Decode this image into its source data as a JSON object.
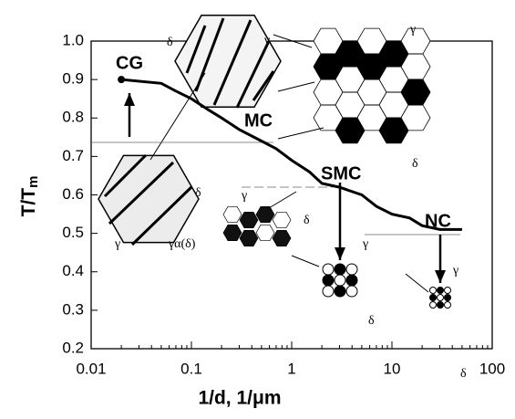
{
  "chart_data": {
    "type": "line",
    "x_label": "1/d, 1/μm",
    "y_label": [
      "T/T",
      "m"
    ],
    "x": [
      0.02,
      0.05,
      0.07,
      0.1,
      0.15,
      0.2,
      0.3,
      0.5,
      0.7,
      1,
      1.5,
      2,
      3,
      5,
      7,
      10,
      15,
      20,
      30,
      50
    ],
    "series": [
      {
        "color": "#000000",
        "values": [
          0.9,
          0.89,
          0.87,
          0.85,
          0.82,
          0.8,
          0.77,
          0.74,
          0.72,
          0.69,
          0.66,
          0.63,
          0.62,
          0.6,
          0.57,
          0.55,
          0.54,
          0.52,
          0.51,
          0.51
        ]
      }
    ],
    "xlim": [
      0.01,
      100
    ],
    "xticks": [
      0.01,
      0.1,
      1,
      10,
      100
    ],
    "xscale": "log",
    "ylim": [
      0.2,
      1
    ],
    "yticks": [
      0.2,
      0.3,
      0.4,
      0.5,
      0.6,
      0.7,
      0.8,
      0.9,
      {
        "value": 1,
        "label": "1.0"
      }
    ],
    "annotations": [
      "CG",
      "MC",
      "SMC",
      "NC"
    ],
    "phase_labels": [
      "δ",
      "γ",
      "γ",
      "δ",
      "δ",
      "γ",
      "γα(δ)",
      "γ",
      "δ",
      "γ",
      "δ",
      "γ",
      "δ"
    ]
  }
}
